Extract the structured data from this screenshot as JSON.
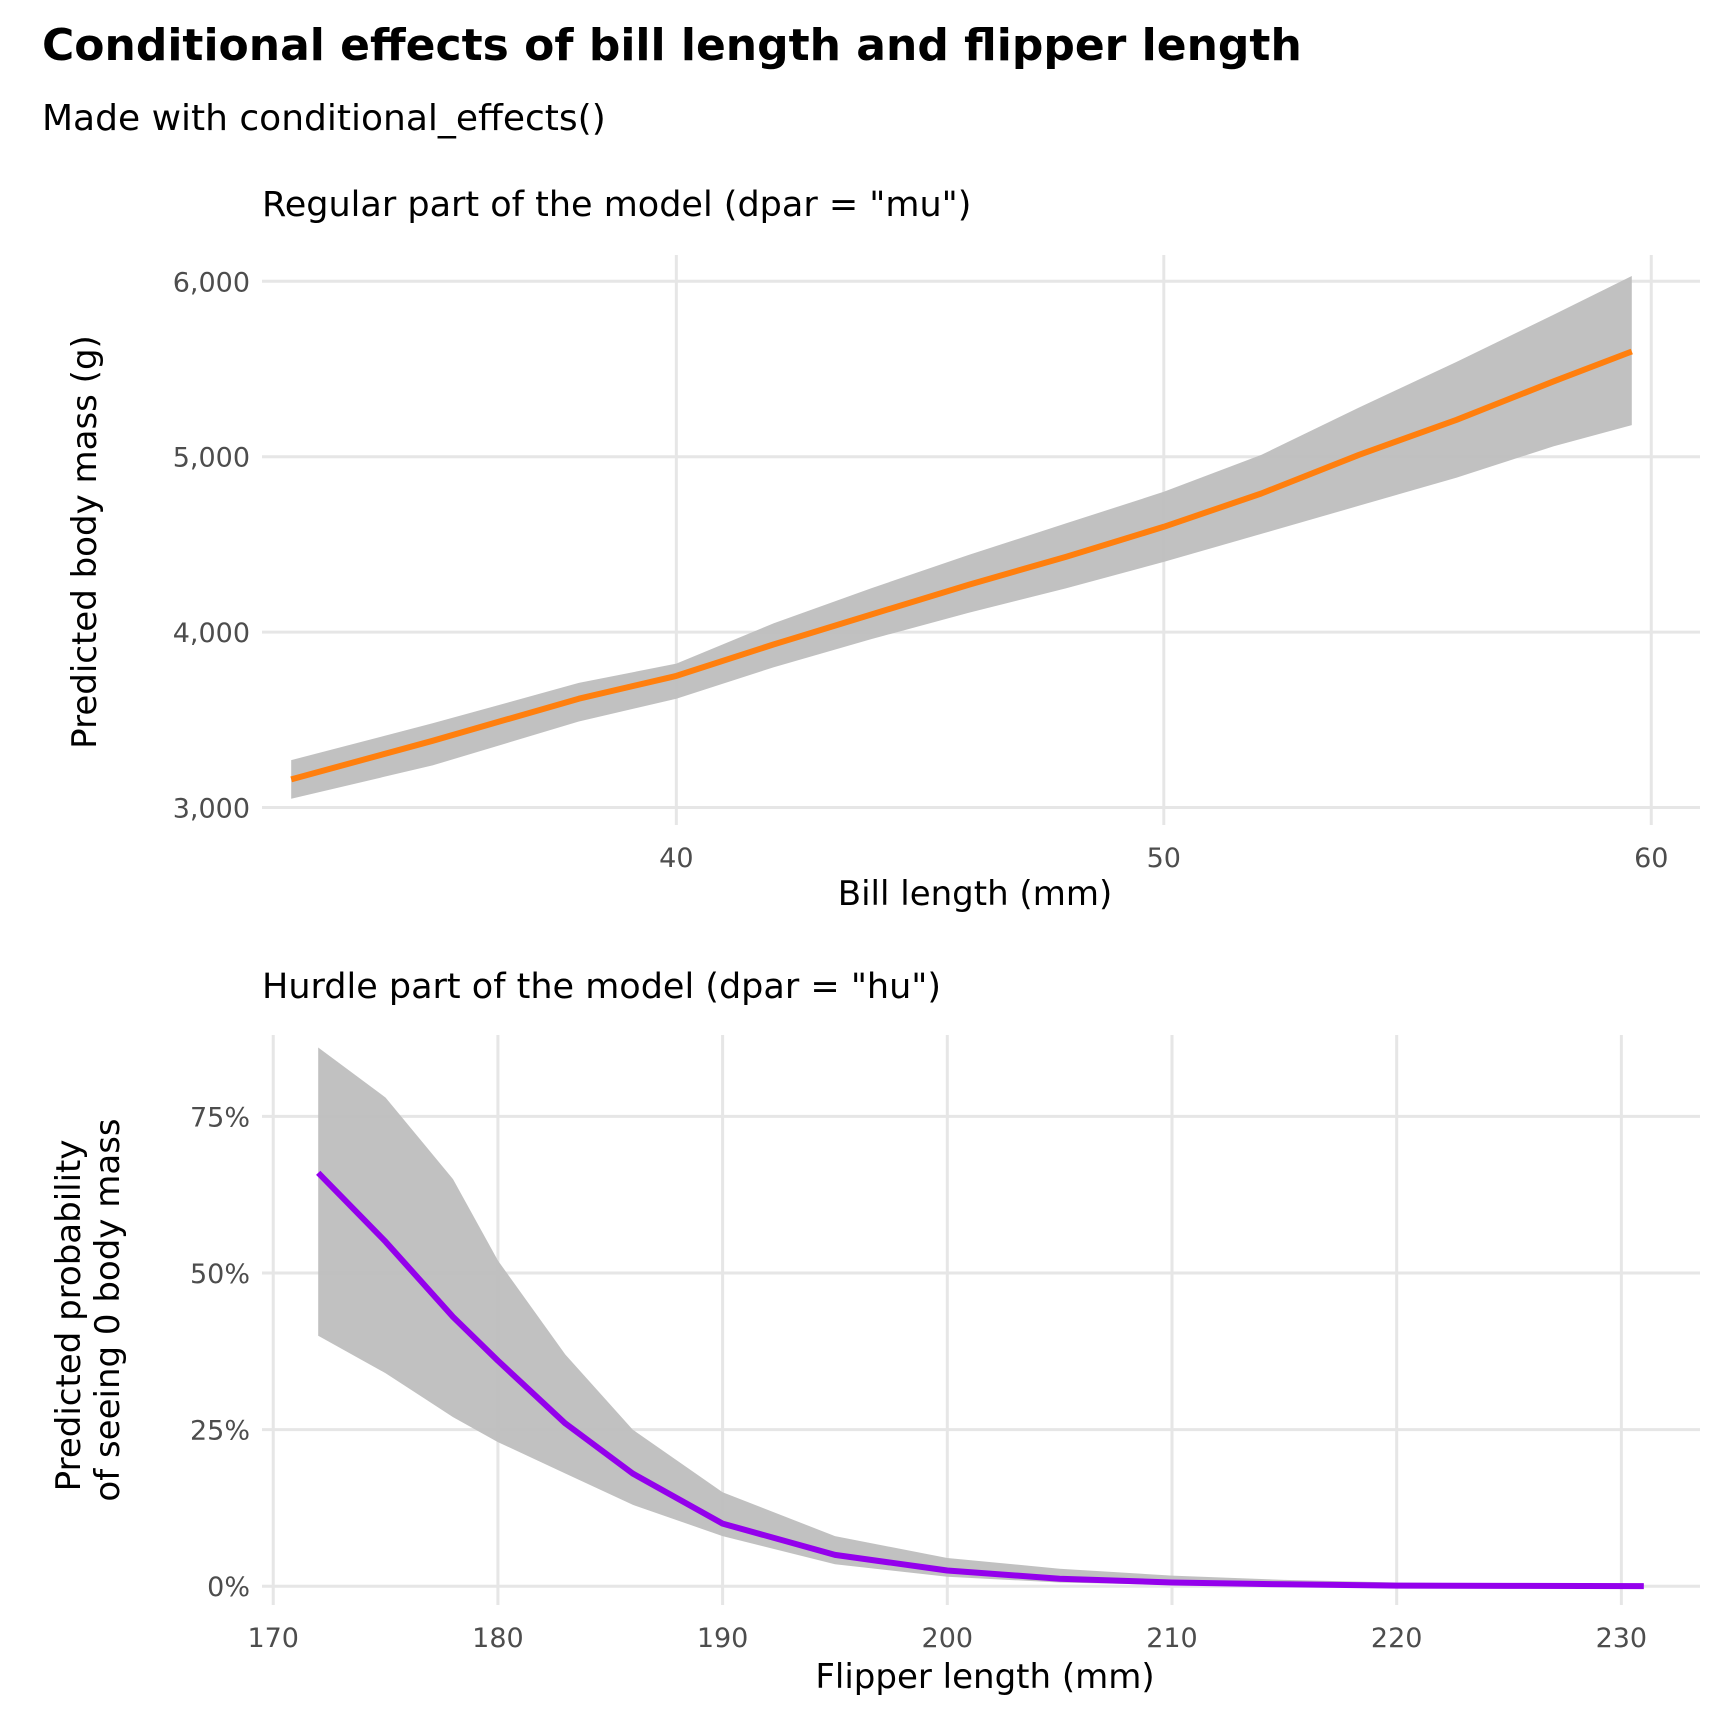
{
  "title": "Conditional effects of bill length and flipper length",
  "subtitle": "Made with conditional_effects()",
  "chart_data": [
    {
      "type": "line",
      "panel_title": "Regular part of the model (dpar = \"mu\")",
      "xlabel": "Bill length (mm)",
      "ylabel": "Predicted body mass (g)",
      "xlim": [
        31.5,
        61
      ],
      "ylim": [
        2900,
        6150
      ],
      "x_ticks": [
        40,
        50,
        60
      ],
      "x_tick_labels": [
        "40",
        "50",
        "60"
      ],
      "y_ticks": [
        3000,
        4000,
        5000,
        6000
      ],
      "y_tick_labels": [
        "3,000",
        "4,000",
        "5,000",
        "6,000"
      ],
      "grid": true,
      "line_color": "#ff7f0e",
      "ribbon_color": "#bebebe",
      "series": [
        {
          "x": [
            32.1,
            35,
            38,
            40,
            42,
            44,
            46,
            48,
            50,
            52,
            54,
            56,
            58,
            59.6
          ],
          "y": [
            3160,
            3380,
            3620,
            3750,
            3930,
            4100,
            4270,
            4430,
            4600,
            4790,
            5010,
            5210,
            5430,
            5600
          ],
          "lower": [
            3050,
            3240,
            3490,
            3620,
            3800,
            3960,
            4110,
            4250,
            4400,
            4560,
            4720,
            4880,
            5060,
            5180
          ],
          "upper": [
            3270,
            3480,
            3710,
            3820,
            4050,
            4250,
            4440,
            4620,
            4800,
            5010,
            5280,
            5540,
            5810,
            6030
          ]
        }
      ]
    },
    {
      "type": "line",
      "panel_title": "Hurdle part of the model (dpar = \"hu\")",
      "xlabel": "Flipper length (mm)",
      "ylabel": "Predicted probability\nof seeing 0 body mass",
      "xlim": [
        169.5,
        233.5
      ],
      "ylim": [
        -0.03,
        0.88
      ],
      "x_ticks": [
        170,
        180,
        190,
        200,
        210,
        220,
        230
      ],
      "x_tick_labels": [
        "170",
        "180",
        "190",
        "200",
        "210",
        "220",
        "230"
      ],
      "y_ticks": [
        0,
        0.25,
        0.5,
        0.75
      ],
      "y_tick_labels": [
        "0%",
        "25%",
        "50%",
        "75%"
      ],
      "grid": true,
      "line_color": "#9400ec",
      "ribbon_color": "#bebebe",
      "series": [
        {
          "x": [
            172,
            175,
            178,
            180,
            183,
            186,
            190,
            195,
            200,
            205,
            210,
            215,
            220,
            225,
            231
          ],
          "y": [
            0.66,
            0.55,
            0.43,
            0.36,
            0.26,
            0.18,
            0.1,
            0.05,
            0.025,
            0.012,
            0.006,
            0.003,
            0.001,
            0.0005,
            0.0002
          ],
          "lower": [
            0.4,
            0.34,
            0.27,
            0.23,
            0.18,
            0.13,
            0.08,
            0.035,
            0.015,
            0.006,
            0.002,
            0.001,
            0.0003,
            0.0001,
            0.0
          ],
          "upper": [
            0.86,
            0.78,
            0.65,
            0.52,
            0.37,
            0.25,
            0.15,
            0.08,
            0.045,
            0.028,
            0.017,
            0.01,
            0.006,
            0.004,
            0.003
          ]
        }
      ]
    }
  ]
}
